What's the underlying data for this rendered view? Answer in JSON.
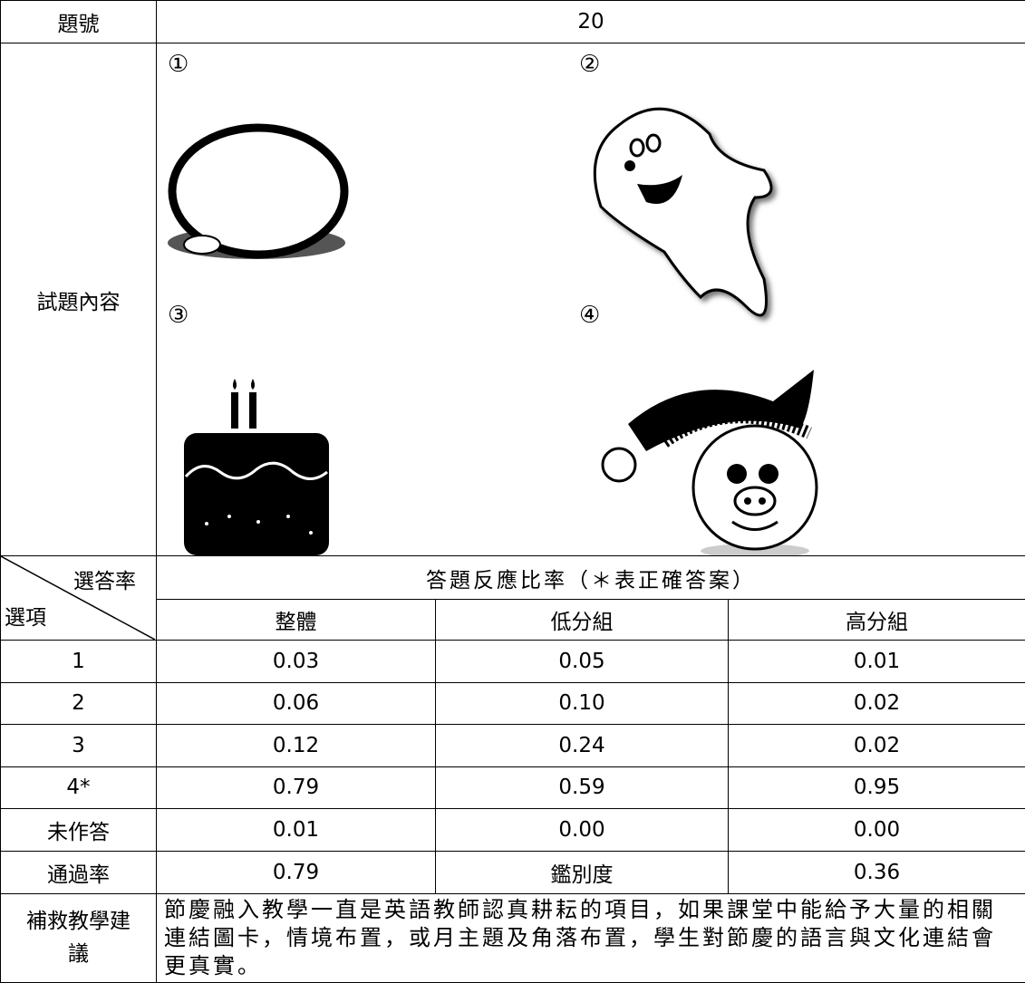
{
  "header": {
    "label": "題號",
    "value": "20"
  },
  "content": {
    "label": "試題內容",
    "options": [
      "①",
      "②",
      "③",
      "④"
    ]
  },
  "table": {
    "corner_top": "選答率",
    "corner_bottom": "選項",
    "title": "答題反應比率（＊表正確答案）",
    "columns": [
      "整體",
      "低分組",
      "高分組"
    ],
    "rows": [
      [
        "1",
        "0.03",
        "0.05",
        "0.01"
      ],
      [
        "2",
        "0.06",
        "0.10",
        "0.02"
      ],
      [
        "3",
        "0.12",
        "0.24",
        "0.02"
      ],
      [
        "4*",
        "0.79",
        "0.59",
        "0.95"
      ],
      [
        "未作答",
        "0.01",
        "0.00",
        "0.00"
      ]
    ]
  },
  "summary": {
    "pass_label": "通過率",
    "pass_value": "0.79",
    "disc_label": "鑑別度",
    "disc_value": "0.36"
  },
  "remedial": {
    "label": "補救教學建議",
    "text": "節慶融入教學一直是英語教師認真耕耘的項目，如果課堂中能給予大量的相關連結圖卡，情境布置，或月主題及角落布置，學生對節慶的語言與文化連結會更真實。"
  }
}
